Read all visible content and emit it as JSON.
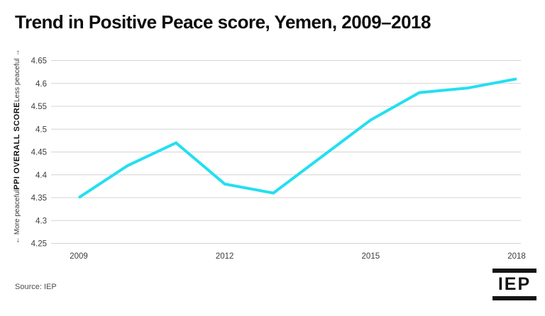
{
  "title": "Trend in Positive Peace score, Yemen, 2009–2018",
  "chart_data": {
    "type": "line",
    "series_name": "PPI Overall Score, Yemen",
    "x": [
      2009,
      2010,
      2011,
      2012,
      2013,
      2014,
      2015,
      2016,
      2017,
      2018
    ],
    "values": [
      4.35,
      4.42,
      4.47,
      4.38,
      4.36,
      4.44,
      4.52,
      4.58,
      4.59,
      4.61
    ],
    "ylim": [
      4.25,
      4.65
    ],
    "yticks": [
      4.25,
      4.3,
      4.35,
      4.4,
      4.45,
      4.5,
      4.55,
      4.6,
      4.65
    ],
    "xticks": [
      2009,
      2012,
      2015,
      2018
    ],
    "ylabel": "PPI OVERALL SCORE",
    "ylabel_top": "Less peaceful →",
    "ylabel_bottom": "← More peaceful",
    "line_color": "#23dff0",
    "grid_color": "#d4d4d4",
    "tick_color": "#3d3d3d",
    "grid": true,
    "legend": false
  },
  "footer": {
    "source": "Source: IEP",
    "logo_text": "IEP"
  }
}
